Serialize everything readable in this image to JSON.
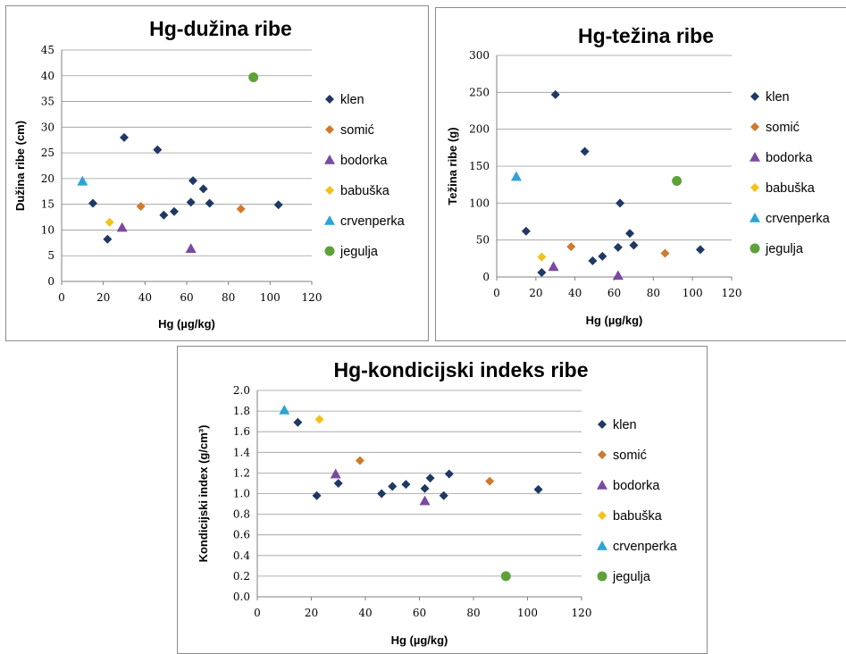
{
  "series_styles": [
    {
      "name": "klen",
      "color": "#1F3864",
      "marker": "diamond"
    },
    {
      "name": "somić",
      "color": "#D07A2E",
      "marker": "diamond"
    },
    {
      "name": "bodorka",
      "color": "#7A4AA0",
      "marker": "triangle"
    },
    {
      "name": "babuška",
      "color": "#F2C21B",
      "marker": "diamond"
    },
    {
      "name": "crvenperka",
      "color": "#2EA3D5",
      "marker": "triangle"
    },
    {
      "name": "jegulja",
      "color": "#5EA23A",
      "marker": "circle"
    }
  ],
  "chart_data": [
    {
      "type": "scatter",
      "title": "Hg-dužina ribe",
      "xlabel": "Hg (µg/kg)",
      "ylabel": "Dužina ribe (cm)",
      "xlim": [
        0,
        120
      ],
      "ylim": [
        0,
        45
      ],
      "xticks": [
        0,
        20,
        40,
        60,
        80,
        100,
        120
      ],
      "yticks": [
        0,
        5,
        10,
        15,
        20,
        25,
        30,
        35,
        40,
        45
      ],
      "grid": "horizontal",
      "legend": "right",
      "series": [
        {
          "name": "klen",
          "x": [
            15,
            22,
            30,
            46,
            49,
            54,
            62,
            63,
            68,
            71,
            104
          ],
          "y": [
            15.2,
            8.2,
            28,
            25.6,
            12.9,
            13.6,
            15.4,
            19.6,
            18,
            15.2,
            14.9
          ]
        },
        {
          "name": "somić",
          "x": [
            38,
            86
          ],
          "y": [
            14.6,
            14.1
          ]
        },
        {
          "name": "bodorka",
          "x": [
            29,
            62
          ],
          "y": [
            10.5,
            6.4
          ]
        },
        {
          "name": "babuška",
          "x": [
            23
          ],
          "y": [
            11.5
          ]
        },
        {
          "name": "crvenperka",
          "x": [
            10
          ],
          "y": [
            19.5
          ]
        },
        {
          "name": "jegulja",
          "x": [
            92
          ],
          "y": [
            39.7
          ]
        }
      ]
    },
    {
      "type": "scatter",
      "title": "Hg-težina ribe",
      "xlabel": "Hg (µg/kg)",
      "ylabel": "Težina ribe (g)",
      "xlim": [
        0,
        120
      ],
      "ylim": [
        0,
        300
      ],
      "xticks": [
        0,
        20,
        40,
        60,
        80,
        100,
        120
      ],
      "yticks": [
        0,
        50,
        100,
        150,
        200,
        250,
        300
      ],
      "grid": "horizontal",
      "legend": "right",
      "series": [
        {
          "name": "klen",
          "x": [
            15,
            23,
            30,
            45,
            49,
            54,
            62,
            63,
            68,
            70,
            104
          ],
          "y": [
            62,
            6,
            247,
            170,
            22,
            28,
            40,
            100,
            59,
            43,
            37
          ]
        },
        {
          "name": "somić",
          "x": [
            38,
            86
          ],
          "y": [
            41,
            32
          ]
        },
        {
          "name": "bodorka",
          "x": [
            29,
            62
          ],
          "y": [
            14,
            2
          ]
        },
        {
          "name": "babuška",
          "x": [
            23
          ],
          "y": [
            27
          ]
        },
        {
          "name": "crvenperka",
          "x": [
            10
          ],
          "y": [
            136
          ]
        },
        {
          "name": "jegulja",
          "x": [
            92
          ],
          "y": [
            130
          ]
        }
      ]
    },
    {
      "type": "scatter",
      "title": "Hg-kondicijski indeks ribe",
      "xlabel": "Hg (µg/kg)",
      "ylabel": "Kondicijski index (g/cm³)",
      "xlim": [
        0,
        120
      ],
      "ylim": [
        0,
        2
      ],
      "xticks": [
        0,
        20,
        40,
        60,
        80,
        100,
        120
      ],
      "yticks": [
        "0.0",
        "0.2",
        "0.4",
        "0.6",
        "0.8",
        "1.0",
        "1.2",
        "1.4",
        "1.6",
        "1.8",
        "2.0"
      ],
      "grid": "horizontal",
      "legend": "right",
      "series": [
        {
          "name": "klen",
          "x": [
            15,
            22,
            30,
            46,
            50,
            55,
            62,
            64,
            69,
            71,
            104
          ],
          "y": [
            1.69,
            0.98,
            1.1,
            1.0,
            1.07,
            1.09,
            1.05,
            1.15,
            0.98,
            1.19,
            1.04
          ]
        },
        {
          "name": "somić",
          "x": [
            38,
            86
          ],
          "y": [
            1.32,
            1.12
          ]
        },
        {
          "name": "bodorka",
          "x": [
            29,
            62
          ],
          "y": [
            1.19,
            0.93
          ]
        },
        {
          "name": "babuška",
          "x": [
            23
          ],
          "y": [
            1.72
          ]
        },
        {
          "name": "crvenperka",
          "x": [
            10
          ],
          "y": [
            1.81
          ]
        },
        {
          "name": "jegulja",
          "x": [
            92
          ],
          "y": [
            0.2
          ]
        }
      ]
    }
  ]
}
